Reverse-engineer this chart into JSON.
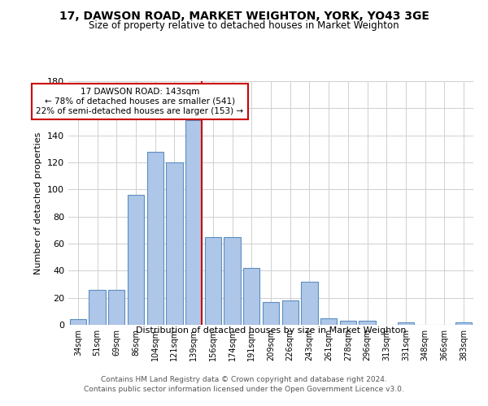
{
  "title": "17, DAWSON ROAD, MARKET WEIGHTON, YORK, YO43 3GE",
  "subtitle": "Size of property relative to detached houses in Market Weighton",
  "xlabel": "Distribution of detached houses by size in Market Weighton",
  "ylabel": "Number of detached properties",
  "categories": [
    "34sqm",
    "51sqm",
    "69sqm",
    "86sqm",
    "104sqm",
    "121sqm",
    "139sqm",
    "156sqm",
    "174sqm",
    "191sqm",
    "209sqm",
    "226sqm",
    "243sqm",
    "261sqm",
    "278sqm",
    "296sqm",
    "313sqm",
    "331sqm",
    "348sqm",
    "366sqm",
    "383sqm"
  ],
  "values": [
    4,
    26,
    26,
    96,
    128,
    120,
    151,
    65,
    65,
    42,
    17,
    18,
    32,
    5,
    3,
    3,
    0,
    2,
    0,
    0,
    2
  ],
  "bar_color": "#aec6e8",
  "bar_edge_color": "#5a8fc2",
  "background_color": "#ffffff",
  "grid_color": "#d0d0d0",
  "vline_x_index": 6,
  "vline_color": "#cc0000",
  "annotation_line1": "17 DAWSON ROAD: 143sqm",
  "annotation_line2": "← 78% of detached houses are smaller (541)",
  "annotation_line3": "22% of semi-detached houses are larger (153) →",
  "annotation_box_color": "#cc0000",
  "ylim": [
    0,
    180
  ],
  "yticks": [
    0,
    20,
    40,
    60,
    80,
    100,
    120,
    140,
    160,
    180
  ],
  "footer_line1": "Contains HM Land Registry data © Crown copyright and database right 2024.",
  "footer_line2": "Contains public sector information licensed under the Open Government Licence v3.0."
}
